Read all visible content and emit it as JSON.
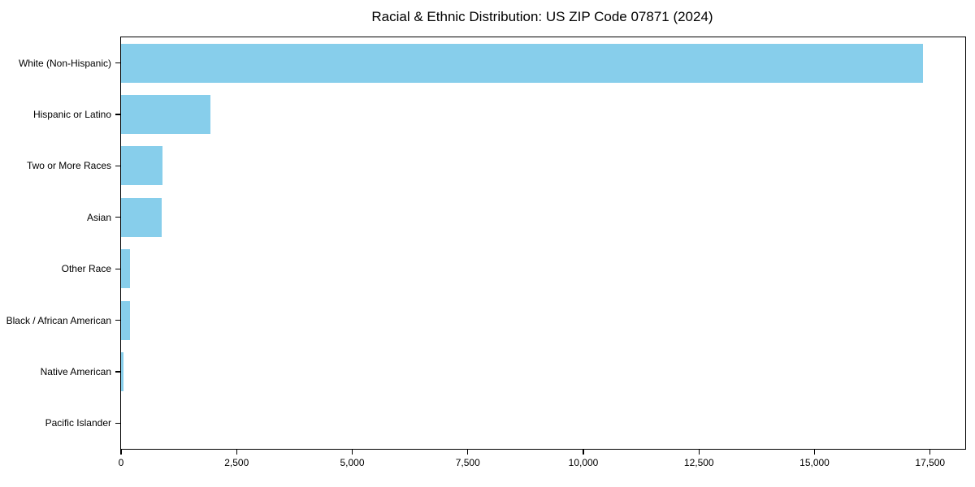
{
  "title": "Racial & Ethnic Distribution: US ZIP Code 07871 (2024)",
  "chart_data": {
    "type": "bar",
    "orientation": "horizontal",
    "title": "Racial & Ethnic Distribution: US ZIP Code 07871 (2024)",
    "xlabel": "",
    "ylabel": "",
    "categories": [
      "White (Non-Hispanic)",
      "Hispanic or Latino",
      "Two or More Races",
      "Asian",
      "Other Race",
      "Black / African American",
      "Native American",
      "Pacific Islander"
    ],
    "values": [
      17340,
      1925,
      890,
      870,
      200,
      195,
      48,
      0
    ],
    "bar_color": "#87ceeb",
    "xlim": [
      0,
      18260
    ],
    "x_ticks": [
      0,
      2500,
      5000,
      7500,
      10000,
      12500,
      15000,
      17500
    ],
    "x_tick_labels": [
      "0",
      "2,500",
      "5,000",
      "7,500",
      "10,000",
      "12,500",
      "15,000",
      "17,500"
    ],
    "grid": false,
    "legend": false,
    "frame": "full-box"
  }
}
